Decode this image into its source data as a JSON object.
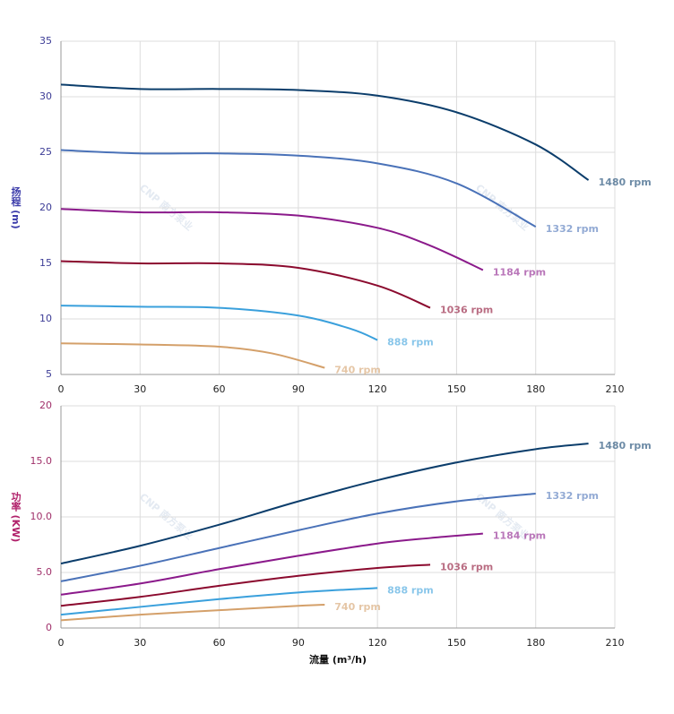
{
  "chart_data": [
    {
      "type": "line",
      "y_label": "扬程 (m)",
      "watermark": "CNP 南方泵业",
      "xlim": [
        0,
        210
      ],
      "xticks": [
        0,
        30,
        60,
        90,
        120,
        150,
        180,
        210
      ],
      "ylim": [
        5,
        35
      ],
      "yticks": [
        5,
        10,
        15,
        20,
        25,
        30,
        35
      ],
      "grid": true,
      "series": [
        {
          "name": "1480 rpm",
          "color": "#0b3d6b",
          "x": [
            0,
            30,
            60,
            90,
            120,
            150,
            180,
            200
          ],
          "values": [
            31.1,
            30.7,
            30.7,
            30.6,
            30.1,
            28.6,
            25.7,
            22.5
          ]
        },
        {
          "name": "1332 rpm",
          "color": "#4a72b8",
          "x": [
            0,
            30,
            60,
            90,
            120,
            150,
            180
          ],
          "values": [
            25.2,
            24.9,
            24.9,
            24.7,
            24.0,
            22.2,
            18.3
          ]
        },
        {
          "name": "1184 rpm",
          "color": "#8b1a8b",
          "x": [
            0,
            30,
            60,
            90,
            120,
            140,
            160
          ],
          "values": [
            19.9,
            19.6,
            19.6,
            19.3,
            18.2,
            16.6,
            14.4
          ]
        },
        {
          "name": "1036 rpm",
          "color": "#8b0a2e",
          "x": [
            0,
            30,
            60,
            90,
            120,
            140
          ],
          "values": [
            15.2,
            15.0,
            15.0,
            14.6,
            13.0,
            11.0
          ]
        },
        {
          "name": "888 rpm",
          "color": "#3aa0dc",
          "x": [
            0,
            30,
            60,
            90,
            110,
            120
          ],
          "values": [
            11.2,
            11.1,
            11.0,
            10.3,
            9.1,
            8.1
          ]
        },
        {
          "name": "740 rpm",
          "color": "#d4a06a",
          "x": [
            0,
            30,
            60,
            80,
            100
          ],
          "values": [
            7.8,
            7.7,
            7.5,
            6.9,
            5.6
          ]
        }
      ]
    },
    {
      "type": "line",
      "y_label": "功率 (KW)",
      "x_label": "流量 (m³/h)",
      "watermark": "CNP 南方泵业",
      "xlim": [
        0,
        210
      ],
      "xticks": [
        0,
        30,
        60,
        90,
        120,
        150,
        180,
        210
      ],
      "ylim": [
        0,
        20
      ],
      "yticks": [
        0,
        {
          "value": 5,
          "label": "5.0"
        },
        {
          "value": 10,
          "label": "10.0"
        },
        {
          "value": 15,
          "label": "15.0"
        },
        20
      ],
      "grid": true,
      "series": [
        {
          "name": "1480 rpm",
          "color": "#0b3d6b",
          "x": [
            0,
            30,
            60,
            90,
            120,
            150,
            180,
            200
          ],
          "values": [
            5.8,
            7.4,
            9.3,
            11.4,
            13.3,
            14.9,
            16.1,
            16.6
          ]
        },
        {
          "name": "1332 rpm",
          "color": "#4a72b8",
          "x": [
            0,
            30,
            60,
            90,
            120,
            150,
            180
          ],
          "values": [
            4.2,
            5.6,
            7.2,
            8.8,
            10.3,
            11.4,
            12.1
          ]
        },
        {
          "name": "1184 rpm",
          "color": "#8b1a8b",
          "x": [
            0,
            30,
            60,
            90,
            120,
            140,
            160
          ],
          "values": [
            3.0,
            4.0,
            5.3,
            6.5,
            7.6,
            8.1,
            8.5
          ]
        },
        {
          "name": "1036 rpm",
          "color": "#8b0a2e",
          "x": [
            0,
            30,
            60,
            90,
            120,
            140
          ],
          "values": [
            2.0,
            2.8,
            3.8,
            4.7,
            5.4,
            5.7
          ]
        },
        {
          "name": "888 rpm",
          "color": "#3aa0dc",
          "x": [
            0,
            30,
            60,
            90,
            120
          ],
          "values": [
            1.2,
            1.9,
            2.6,
            3.2,
            3.6
          ]
        },
        {
          "name": "740 rpm",
          "color": "#d4a06a",
          "x": [
            0,
            30,
            60,
            90,
            100
          ],
          "values": [
            0.7,
            1.2,
            1.6,
            2.0,
            2.1
          ]
        }
      ]
    }
  ]
}
